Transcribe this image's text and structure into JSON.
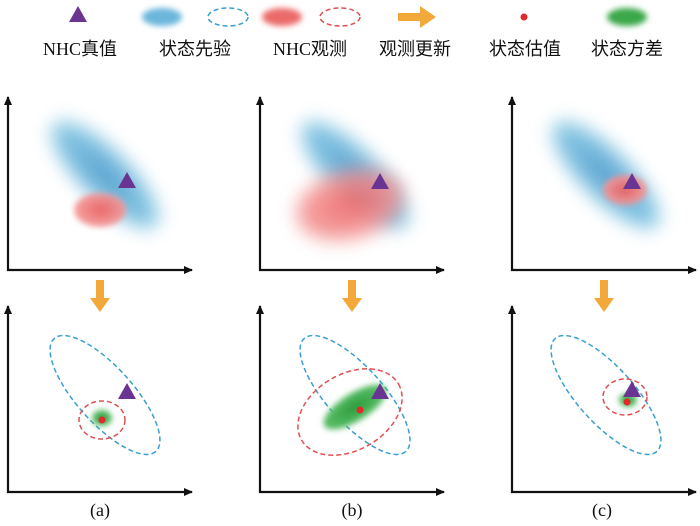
{
  "legend": {
    "items": [
      "NHC真值",
      "状态先验",
      "NHC观测",
      "观测更新",
      "状态估值",
      "状态方差"
    ]
  },
  "panels": {
    "labels": [
      "(a)",
      "(b)",
      "(c)"
    ]
  }
}
